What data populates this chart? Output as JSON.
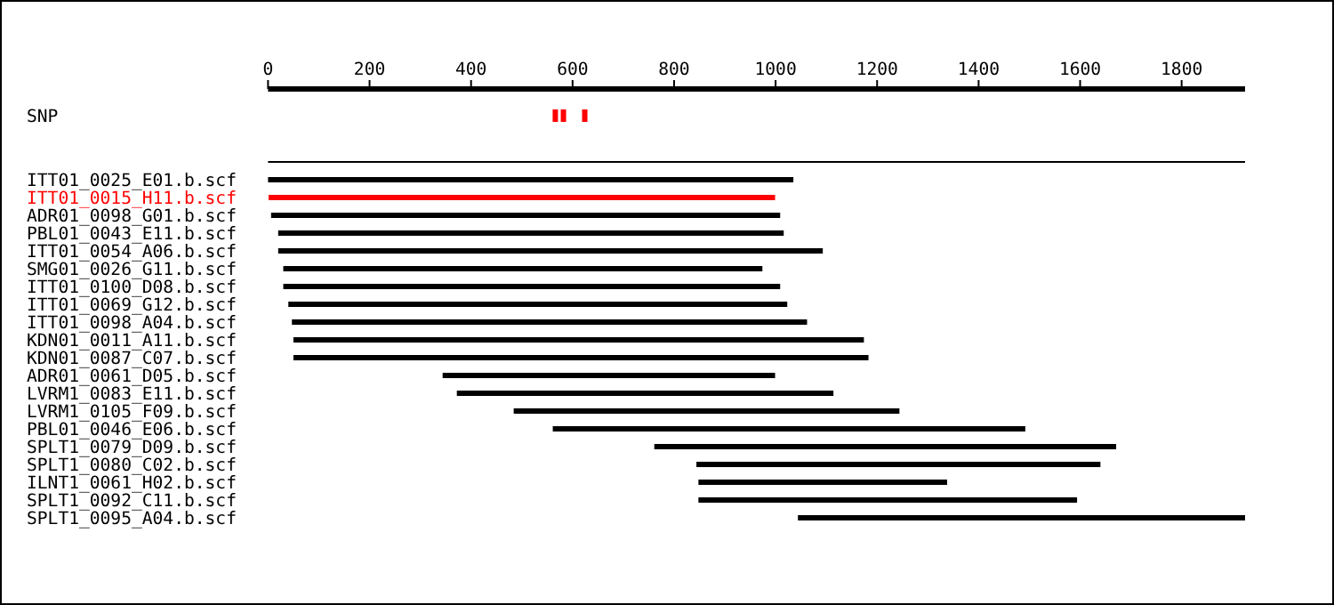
{
  "chart_data": {
    "type": "bar",
    "orientation": "horizontal",
    "categories": [
      "SNP",
      null,
      "ITT01_0025_E01.b.scf",
      "ITT01_0015_H11.b.scf",
      "ADR01_0098_G01.b.scf",
      "PBL01_0043_E11.b.scf",
      "ITT01_0054_A06.b.scf",
      "SMG01_0026_G11.b.scf",
      "ITT01_0100_D08.b.scf",
      "ITT01_0069_G12.b.scf",
      "ITT01_0098_A04.b.scf",
      "KDN01_0011_A11.b.scf",
      "KDN01_0087_C07.b.scf",
      "ADR01_0061_D05.b.scf",
      "LVRM1_0083_E11.b.scf",
      "LVRM1_0105_F09.b.scf",
      "PBL01_0046_E06.b.scf",
      "SPLT1_0079_D09.b.scf",
      "SPLT1_0080_C02.b.scf",
      "ILNT1_0061_H02.b.scf",
      "SPLT1_0092_C11.b.scf",
      "SPLT1_0095_A04.b.scf"
    ],
    "series": [
      {
        "color": "#000000",
        "base": [
          null,
          0,
          null,
          null,
          null,
          null,
          null,
          null,
          null,
          null,
          null,
          null,
          null,
          null,
          null,
          null,
          null,
          null,
          null,
          null,
          null,
          null
        ],
        "values": [
          null,
          1925,
          null,
          null,
          null,
          null,
          null,
          null,
          null,
          null,
          null,
          null,
          null,
          null,
          null,
          null,
          null,
          null,
          null,
          null,
          null,
          null
        ]
      },
      {
        "colors": [
          "#000000",
          "#000000",
          "#000000",
          "#ff0000",
          "#000000",
          "#000000",
          "#000000",
          "#000000",
          "#000000",
          "#000000",
          "#000000",
          "#000000",
          "#000000",
          "#000000",
          "#000000",
          "#000000",
          "#000000",
          "#000000",
          "#000000",
          "#000000",
          "#000000",
          "#000000"
        ],
        "base": [
          null,
          null,
          0,
          1,
          6,
          20,
          20,
          30,
          30,
          40,
          47,
          50,
          50,
          344,
          372,
          484,
          561,
          761,
          844,
          848,
          848,
          1044
        ],
        "values": [
          null,
          null,
          1035,
          998,
          1003,
          996,
          1073,
          944,
          979,
          983,
          1015,
          1124,
          1133,
          655,
          742,
          760,
          931,
          910,
          796,
          490,
          746,
          881
        ]
      },
      {
        "type": "scatter",
        "marker": "square",
        "color": "#ff0000",
        "x": [
          "SNP",
          "SNP",
          "SNP"
        ],
        "values": [
          566,
          582,
          624
        ]
      }
    ],
    "xlim": [
      0,
      1925
    ],
    "xticks": [
      0,
      200,
      400,
      600,
      800,
      1000,
      1200,
      1400,
      1600,
      1800
    ],
    "grid": false
  }
}
